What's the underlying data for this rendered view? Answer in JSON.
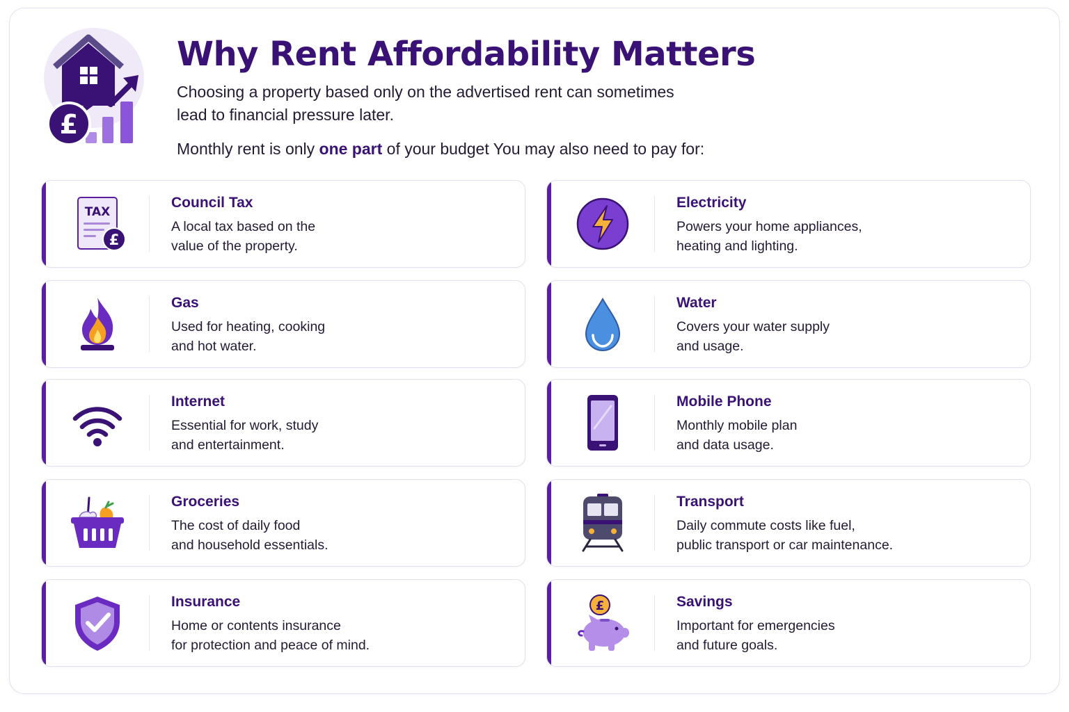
{
  "header": {
    "title": "Why Rent Affordability Matters",
    "intro_line1": "Choosing a property based only on the advertised rent can sometimes",
    "intro_line2": "lead to financial pressure later.",
    "budget_before": "Monthly rent is only ",
    "budget_emphasis": "one part",
    "budget_after": " of your budget  You may also need to pay for:",
    "hero_icon": "house-pound-growth-icon"
  },
  "cards": [
    {
      "icon": "tax-document-icon",
      "title": "Council Tax",
      "line1": "A local tax based on the",
      "line2": "value of the property."
    },
    {
      "icon": "lightning-icon",
      "title": "Electricity",
      "line1": "Powers your home appliances,",
      "line2": "heating and lighting."
    },
    {
      "icon": "gas-flame-icon",
      "title": "Gas",
      "line1": "Used for heating, cooking",
      "line2": "and hot water."
    },
    {
      "icon": "water-drop-icon",
      "title": "Water",
      "line1": "Covers your water supply",
      "line2": "and usage."
    },
    {
      "icon": "wifi-icon",
      "title": "Internet",
      "line1": "Essential for work, study",
      "line2": "and entertainment."
    },
    {
      "icon": "mobile-phone-icon",
      "title": "Mobile Phone",
      "line1": "Monthly mobile plan",
      "line2": "and data usage."
    },
    {
      "icon": "shopping-basket-icon",
      "title": "Groceries",
      "line1": "The cost of daily food",
      "line2": "and household essentials."
    },
    {
      "icon": "train-icon",
      "title": "Transport",
      "line1": "Daily commute costs like fuel,",
      "line2": "public transport or car maintenance."
    },
    {
      "icon": "shield-check-icon",
      "title": "Insurance",
      "line1": "Home or contents insurance",
      "line2": "for protection and peace of mind."
    },
    {
      "icon": "piggy-bank-icon",
      "title": "Savings",
      "line1": "Important for emergencies",
      "line2": "and future goals."
    }
  ],
  "icon_labels": {
    "tax": "TAX",
    "pound": "£"
  },
  "colors": {
    "primary": "#3a1175",
    "accent": "#5a1fa0",
    "light_purple": "#b08be6",
    "water_blue": "#4a8fe0",
    "flame_orange": "#f5a020"
  }
}
